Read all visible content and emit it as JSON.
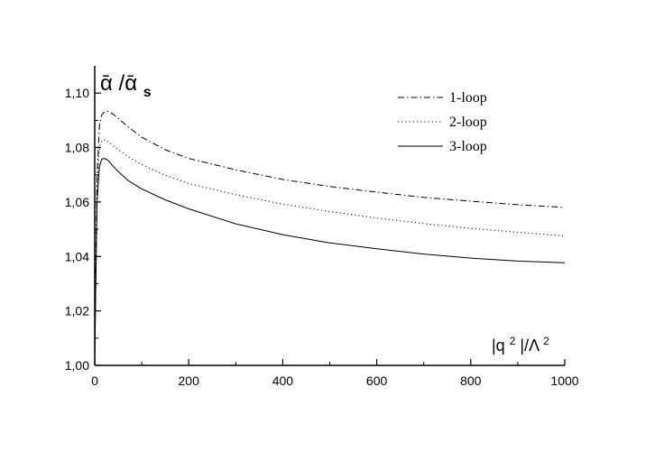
{
  "chart_data": {
    "type": "line",
    "title": "",
    "ylabel": {
      "main": "ᾱ /ᾱ",
      "sub": "s"
    },
    "xlabel": {
      "a": "|q",
      "sup1": "2",
      "b": "|/Λ",
      "sup2": "2"
    },
    "xlim": [
      0,
      1000
    ],
    "ylim": [
      1.0,
      1.11
    ],
    "x_ticks": [
      0,
      200,
      400,
      600,
      800,
      1000
    ],
    "x_tick_labels": [
      "0",
      "200",
      "400",
      "600",
      "800",
      "1000"
    ],
    "y_ticks": [
      1.0,
      1.02,
      1.04,
      1.06,
      1.08,
      1.1
    ],
    "y_tick_labels": [
      "1,00",
      "1,02",
      "1,04",
      "1,06",
      "1,08",
      "1,10"
    ],
    "grid": false,
    "legend_position": "top-right",
    "series": [
      {
        "name": "1-loop",
        "style": "dashdot",
        "x": [
          0,
          2,
          5,
          10,
          15,
          20,
          25,
          30,
          40,
          50,
          70,
          100,
          150,
          200,
          300,
          400,
          500,
          600,
          700,
          800,
          900,
          1000
        ],
        "y": [
          1.0,
          1.035,
          1.07,
          1.088,
          1.092,
          1.093,
          1.0934,
          1.0932,
          1.0922,
          1.0907,
          1.0877,
          1.0838,
          1.0792,
          1.076,
          1.0718,
          1.0683,
          1.0657,
          1.0636,
          1.0617,
          1.0603,
          1.059,
          1.058
        ]
      },
      {
        "name": "2-loop",
        "style": "dotted",
        "x": [
          0,
          2,
          5,
          10,
          15,
          20,
          25,
          30,
          40,
          50,
          70,
          100,
          150,
          200,
          300,
          400,
          500,
          600,
          700,
          800,
          900,
          1000
        ],
        "y": [
          1.0,
          1.03,
          1.065,
          1.08,
          1.0825,
          1.0828,
          1.0825,
          1.082,
          1.0805,
          1.0792,
          1.0768,
          1.0737,
          1.0698,
          1.0668,
          1.0627,
          1.0592,
          1.0565,
          1.0541,
          1.0521,
          1.0503,
          1.0489,
          1.0475
        ]
      },
      {
        "name": "3-loop",
        "style": "solid",
        "x": [
          0,
          2,
          5,
          10,
          15,
          20,
          25,
          30,
          40,
          50,
          70,
          100,
          150,
          200,
          300,
          400,
          500,
          600,
          700,
          800,
          900,
          1000
        ],
        "y": [
          1.0,
          1.025,
          1.06,
          1.073,
          1.0757,
          1.076,
          1.0757,
          1.075,
          1.073,
          1.0712,
          1.068,
          1.0648,
          1.0608,
          1.0575,
          1.052,
          1.048,
          1.045,
          1.0428,
          1.0409,
          1.0394,
          1.0383,
          1.0377
        ]
      }
    ]
  }
}
